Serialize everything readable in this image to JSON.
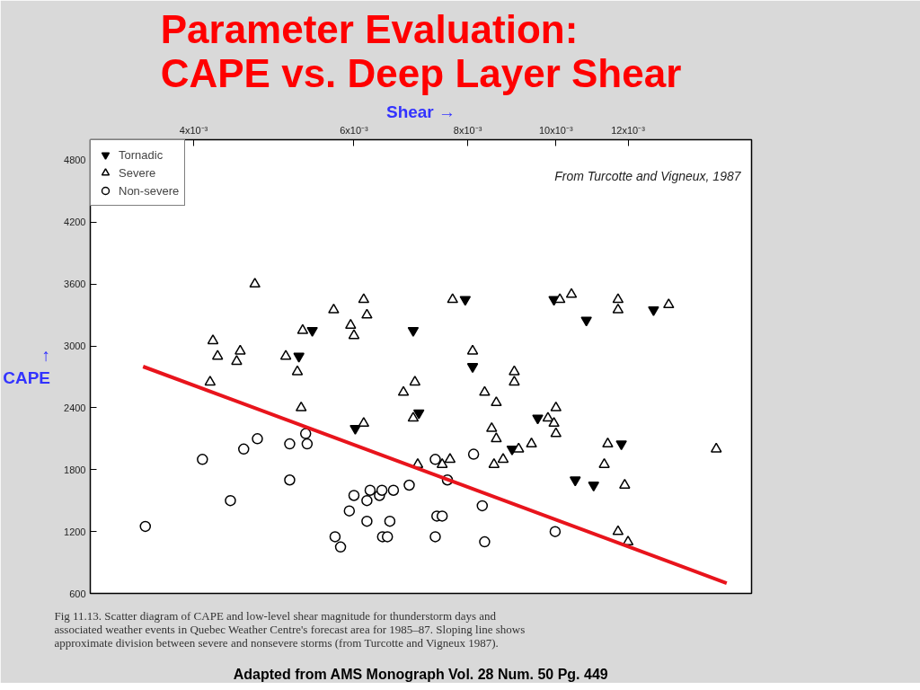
{
  "chart_data": {
    "type": "scatter",
    "title": "Parameter Evaluation:\nCAPE vs. Deep Layer Shear",
    "xlabel": "Shear →",
    "ylabel": "↑\nCAPE",
    "log": "x",
    "xlim": [
      0.00308,
      0.0164
    ],
    "ylim": [
      600,
      5000
    ],
    "xticks": [
      {
        "value": 0.004,
        "label": "4x10⁻³"
      },
      {
        "value": 0.006,
        "label": "6x10⁻³"
      },
      {
        "value": 0.008,
        "label": "8x10⁻³"
      },
      {
        "value": 0.01,
        "label": "10x10⁻³"
      },
      {
        "value": 0.012,
        "label": "12x10⁻³"
      }
    ],
    "yticks": [
      600,
      1200,
      1800,
      2400,
      3000,
      3600,
      4200,
      4800
    ],
    "grid": false,
    "legend": "top left",
    "annotations": [
      "From Turcotte and Vigneux, 1987",
      "Fig 11.13. Scatter diagram of CAPE and low-level shear magnitude for thunderstorm days and associated weather events in Quebec Weather Centre's forecast area for 1985–87. Sloping line shows approximate division between severe and nonsevere storms (from Turcotte and Vigneux 1987).",
      "Adapted from AMS Monograph Vol. 28 Num. 50 Pg. 449"
    ],
    "series": [
      {
        "name": "Tornadic",
        "color": "#000000",
        "x": [
          0.00522,
          0.0054,
          0.00602,
          0.00697,
          0.00707,
          0.00795,
          0.0081,
          0.00895,
          0.00955,
          0.00995,
          0.0108,
          0.0105,
          0.011,
          0.0118,
          0.0128
        ],
        "values": [
          2900,
          3150,
          2200,
          3150,
          2350,
          3450,
          2800,
          2000,
          2300,
          3450,
          3250,
          1700,
          1650,
          2050,
          3350
        ]
      },
      {
        "name": "Severe",
        "color": "#000000",
        "marker": "triangle",
        "x": [
          0.00467,
          0.0042,
          0.00425,
          0.00417,
          0.0045,
          0.00446,
          0.00505,
          0.0052,
          0.00525,
          0.00527,
          0.0057,
          0.00595,
          0.006,
          0.00615,
          0.0062,
          0.00615,
          0.0068,
          0.007,
          0.00697,
          0.0077,
          0.0081,
          0.00835,
          0.0086,
          0.009,
          0.009,
          0.0085,
          0.0086,
          0.00855,
          0.00875,
          0.0091,
          0.0094,
          0.00705,
          0.0075,
          0.00765,
          0.0098,
          0.01,
          0.01,
          0.00995,
          0.0104,
          0.0101,
          0.0114,
          0.0113,
          0.0117,
          0.0117,
          0.0119,
          0.0133,
          0.0117,
          0.012,
          0.015
        ],
        "values": [
          3600,
          3050,
          2900,
          2650,
          2950,
          2850,
          2900,
          2750,
          2400,
          3150,
          3350,
          3200,
          3100,
          3450,
          3300,
          2250,
          2550,
          2650,
          2300,
          3450,
          2950,
          2550,
          2450,
          2750,
          2650,
          2200,
          2100,
          1850,
          1900,
          2000,
          2050,
          1850,
          1850,
          1900,
          2300,
          2400,
          2150,
          2250,
          3500,
          3450,
          2050,
          1850,
          3450,
          3350,
          1650,
          3400,
          1200,
          1100,
          2000
        ]
      },
      {
        "name": "Non-severe",
        "color": "#000000",
        "marker": "circle",
        "x": [
          0.00354,
          0.00409,
          0.00439,
          0.00454,
          0.0047,
          0.0051,
          0.0051,
          0.00533,
          0.00531,
          0.00572,
          0.0058,
          0.00593,
          0.006,
          0.0062,
          0.00625,
          0.0064,
          0.0062,
          0.00645,
          0.00644,
          0.00663,
          0.0069,
          0.00657,
          0.00653,
          0.00737,
          0.0074,
          0.0075,
          0.00737,
          0.0076,
          0.00812,
          0.0083,
          0.00835,
          0.00998
        ],
        "values": [
          1250,
          1900,
          1500,
          2000,
          2100,
          2050,
          1700,
          2050,
          2150,
          1150,
          1050,
          1400,
          1550,
          1500,
          1600,
          1550,
          1300,
          1150,
          1600,
          1600,
          1650,
          1300,
          1150,
          1900,
          1350,
          1350,
          1150,
          1700,
          1950,
          1450,
          1100,
          1200
        ]
      },
      {
        "type": "line",
        "color": "#e8141c",
        "x": [
          0.00352,
          0.0154
        ],
        "values": [
          2800,
          700
        ]
      }
    ]
  }
}
